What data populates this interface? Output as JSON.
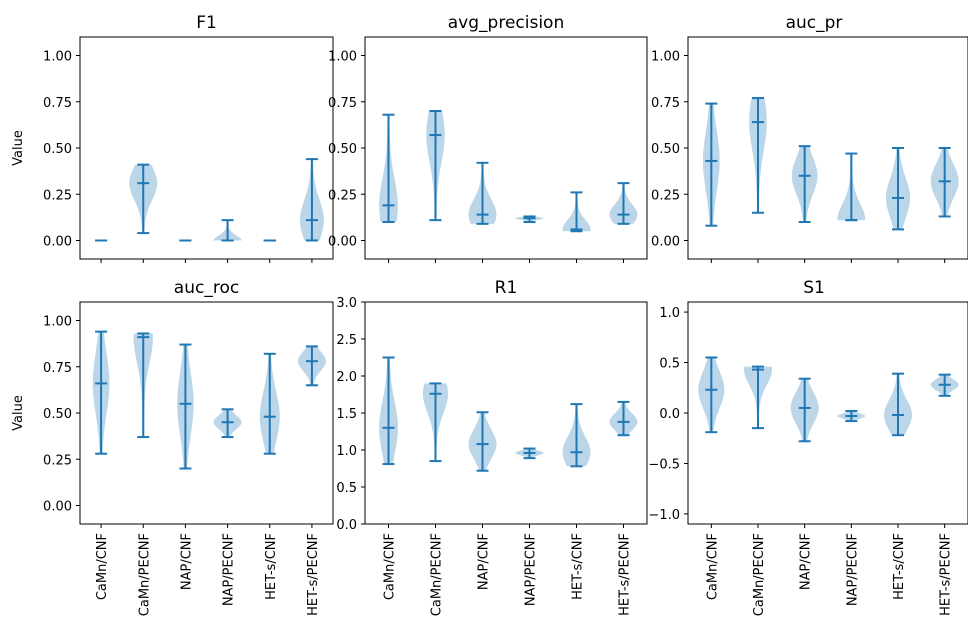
{
  "figure": {
    "ylabel": "Value",
    "categories": [
      "CaMn/CNF",
      "CaMn/PECNF",
      "NAP/CNF",
      "NAP/PECNF",
      "HET-s/CNF",
      "HET-s/PECNF"
    ]
  },
  "chart_data": [
    {
      "type": "violin",
      "title": "F1",
      "xlabel": "",
      "ylabel": "Value",
      "ylim": [
        -0.1,
        1.1
      ],
      "yticks": [
        "0.00",
        "0.25",
        "0.50",
        "0.75",
        "1.00"
      ],
      "color": "#1f77b4",
      "show_xticklabels": false,
      "series": [
        {
          "category": "CaMn/CNF",
          "min": 0.0,
          "median": 0.0,
          "max": 0.0
        },
        {
          "category": "CaMn/PECNF",
          "min": 0.04,
          "median": 0.31,
          "max": 0.41
        },
        {
          "category": "NAP/CNF",
          "min": 0.0,
          "median": 0.0,
          "max": 0.0
        },
        {
          "category": "NAP/PECNF",
          "min": 0.0,
          "median": 0.0,
          "max": 0.11
        },
        {
          "category": "HET-s/CNF",
          "min": 0.0,
          "median": 0.0,
          "max": 0.0
        },
        {
          "category": "HET-s/PECNF",
          "min": 0.0,
          "median": 0.11,
          "max": 0.44
        }
      ]
    },
    {
      "type": "violin",
      "title": "avg_precision",
      "xlabel": "",
      "ylabel": "",
      "ylim": [
        -0.1,
        1.1
      ],
      "yticks": [
        "0.00",
        "0.25",
        "0.50",
        "0.75",
        "1.00"
      ],
      "color": "#1f77b4",
      "show_xticklabels": false,
      "series": [
        {
          "category": "CaMn/CNF",
          "min": 0.1,
          "median": 0.19,
          "max": 0.68
        },
        {
          "category": "CaMn/PECNF",
          "min": 0.11,
          "median": 0.57,
          "max": 0.7
        },
        {
          "category": "NAP/CNF",
          "min": 0.09,
          "median": 0.14,
          "max": 0.42
        },
        {
          "category": "NAP/PECNF",
          "min": 0.1,
          "median": 0.12,
          "max": 0.13
        },
        {
          "category": "HET-s/CNF",
          "min": 0.05,
          "median": 0.06,
          "max": 0.26
        },
        {
          "category": "HET-s/PECNF",
          "min": 0.09,
          "median": 0.14,
          "max": 0.31
        }
      ]
    },
    {
      "type": "violin",
      "title": "auc_pr",
      "xlabel": "",
      "ylabel": "",
      "ylim": [
        -0.1,
        1.1
      ],
      "yticks": [
        "0.00",
        "0.25",
        "0.50",
        "0.75",
        "1.00"
      ],
      "color": "#1f77b4",
      "show_xticklabels": false,
      "series": [
        {
          "category": "CaMn/CNF",
          "min": 0.08,
          "median": 0.43,
          "max": 0.74
        },
        {
          "category": "CaMn/PECNF",
          "min": 0.15,
          "median": 0.64,
          "max": 0.77
        },
        {
          "category": "NAP/CNF",
          "min": 0.1,
          "median": 0.35,
          "max": 0.51
        },
        {
          "category": "NAP/PECNF",
          "min": 0.11,
          "median": 0.11,
          "max": 0.47
        },
        {
          "category": "HET-s/CNF",
          "min": 0.06,
          "median": 0.23,
          "max": 0.5
        },
        {
          "category": "HET-s/PECNF",
          "min": 0.13,
          "median": 0.32,
          "max": 0.5
        }
      ]
    },
    {
      "type": "violin",
      "title": "auc_roc",
      "xlabel": "",
      "ylabel": "Value",
      "ylim": [
        -0.1,
        1.1
      ],
      "yticks": [
        "0.00",
        "0.25",
        "0.50",
        "0.75",
        "1.00"
      ],
      "color": "#1f77b4",
      "show_xticklabels": true,
      "series": [
        {
          "category": "CaMn/CNF",
          "min": 0.28,
          "median": 0.66,
          "max": 0.94
        },
        {
          "category": "CaMn/PECNF",
          "min": 0.37,
          "median": 0.91,
          "max": 0.93
        },
        {
          "category": "NAP/CNF",
          "min": 0.2,
          "median": 0.55,
          "max": 0.87
        },
        {
          "category": "NAP/PECNF",
          "min": 0.37,
          "median": 0.45,
          "max": 0.52
        },
        {
          "category": "HET-s/CNF",
          "min": 0.28,
          "median": 0.48,
          "max": 0.82
        },
        {
          "category": "HET-s/PECNF",
          "min": 0.65,
          "median": 0.78,
          "max": 0.86
        }
      ]
    },
    {
      "type": "violin",
      "title": "R1",
      "xlabel": "",
      "ylabel": "",
      "ylim": [
        0.0,
        3.0
      ],
      "yticks": [
        "0.0",
        "0.5",
        "1.0",
        "1.5",
        "2.0",
        "2.5",
        "3.0"
      ],
      "color": "#1f77b4",
      "show_xticklabels": true,
      "series": [
        {
          "category": "CaMn/CNF",
          "min": 0.81,
          "median": 1.3,
          "max": 2.25
        },
        {
          "category": "CaMn/PECNF",
          "min": 0.85,
          "median": 1.76,
          "max": 1.9
        },
        {
          "category": "NAP/CNF",
          "min": 0.72,
          "median": 1.08,
          "max": 1.51
        },
        {
          "category": "NAP/PECNF",
          "min": 0.89,
          "median": 0.96,
          "max": 1.02
        },
        {
          "category": "HET-s/CNF",
          "min": 0.78,
          "median": 0.97,
          "max": 1.62
        },
        {
          "category": "HET-s/PECNF",
          "min": 1.2,
          "median": 1.38,
          "max": 1.65
        }
      ]
    },
    {
      "type": "violin",
      "title": "S1",
      "xlabel": "",
      "ylabel": "",
      "ylim": [
        -1.1,
        1.1
      ],
      "yticks": [
        "−1.0",
        "−0.5",
        "0.0",
        "0.5",
        "1.0"
      ],
      "color": "#1f77b4",
      "show_xticklabels": true,
      "series": [
        {
          "category": "CaMn/CNF",
          "min": -0.19,
          "median": 0.23,
          "max": 0.55
        },
        {
          "category": "CaMn/PECNF",
          "min": -0.15,
          "median": 0.43,
          "max": 0.46
        },
        {
          "category": "NAP/CNF",
          "min": -0.28,
          "median": 0.05,
          "max": 0.34
        },
        {
          "category": "NAP/PECNF",
          "min": -0.08,
          "median": -0.03,
          "max": 0.02
        },
        {
          "category": "HET-s/CNF",
          "min": -0.22,
          "median": -0.02,
          "max": 0.39
        },
        {
          "category": "HET-s/PECNF",
          "min": 0.17,
          "median": 0.28,
          "max": 0.38
        }
      ]
    }
  ]
}
